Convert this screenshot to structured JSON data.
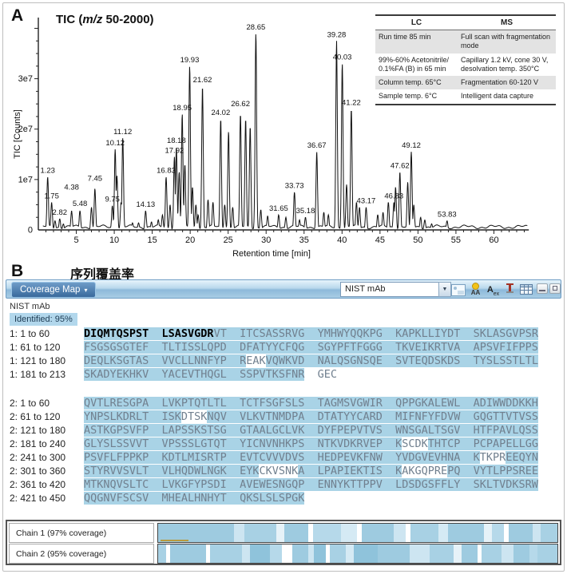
{
  "panel_a": {
    "label": "A",
    "title_parts": {
      "prefix": "TIC (",
      "italic": "m/z",
      "suffix": " 50-2000)"
    },
    "table": {
      "headers": [
        "LC",
        "MS"
      ],
      "rows": [
        [
          "Run time 85 min",
          "Full scan with fragmentation mode"
        ],
        [
          "99%-60% Acetonitrile/ 0.1%FA (B) in 65 min",
          "Capillary 1.2 kV, cone 30 V, desolvation temp. 350°C"
        ],
        [
          "Column temp. 65°C",
          "Fragmentation 60-120 V"
        ],
        [
          "Sample temp. 6°C",
          "Intelligent data capture"
        ]
      ]
    }
  },
  "chart_data": {
    "type": "line",
    "title": "TIC (m/z 50-2000)",
    "xlabel": "Retention time [min]",
    "ylabel": "TIC [Counts]",
    "xlim": [
      0,
      65
    ],
    "ylim_e7": [
      0,
      4.15
    ],
    "intensity_unit": "1e7 counts",
    "xticks": [
      5,
      10,
      15,
      20,
      25,
      30,
      35,
      40,
      45,
      50,
      55,
      60
    ],
    "yticks": [
      {
        "v": 0,
        "label": "0"
      },
      {
        "v": 1,
        "label": "1e7"
      },
      {
        "v": 2,
        "label": "2e7"
      },
      {
        "v": 3,
        "label": "3e7"
      }
    ],
    "peaks": [
      {
        "rt": 1.23,
        "i": 1.05,
        "label": "1.23"
      },
      {
        "rt": 1.75,
        "i": 0.55,
        "label": "1.75"
      },
      {
        "rt": 2.82,
        "i": 0.22,
        "label": "2.82"
      },
      {
        "rt": 4.38,
        "i": 0.38,
        "label": "4.38"
      },
      {
        "rt": 5.48,
        "i": 0.38,
        "label": "5.48"
      },
      {
        "rt": 7.45,
        "i": 0.82,
        "label": "7.45"
      },
      {
        "rt": 9.75,
        "i": 0.48,
        "label": "9.75"
      },
      {
        "rt": 10.12,
        "i": 1.6,
        "label": "10.12"
      },
      {
        "rt": 11.12,
        "i": 1.82,
        "label": "11.12"
      },
      {
        "rt": 14.13,
        "i": 0.38,
        "label": "14.13"
      },
      {
        "rt": 16.83,
        "i": 1.05,
        "label": "16.83"
      },
      {
        "rt": 17.92,
        "i": 1.45,
        "label": "17.92"
      },
      {
        "rt": 18.18,
        "i": 1.65,
        "label": "18.18"
      },
      {
        "rt": 18.95,
        "i": 2.3,
        "label": "18.95"
      },
      {
        "rt": 19.93,
        "i": 3.25,
        "label": "19.93"
      },
      {
        "rt": 21.62,
        "i": 2.85,
        "label": "21.62"
      },
      {
        "rt": 24.02,
        "i": 2.2,
        "label": "24.02"
      },
      {
        "rt": 26.62,
        "i": 2.3,
        "label": "26.62"
      },
      {
        "rt": 28.65,
        "i": 3.9,
        "label": "28.65"
      },
      {
        "rt": 31.65,
        "i": 0.3,
        "label": "31.65"
      },
      {
        "rt": 33.73,
        "i": 0.75,
        "label": "33.73"
      },
      {
        "rt": 35.18,
        "i": 0.25,
        "label": "35.18"
      },
      {
        "rt": 36.67,
        "i": 1.55,
        "label": "36.67"
      },
      {
        "rt": 39.28,
        "i": 3.75,
        "label": "39.28"
      },
      {
        "rt": 40.03,
        "i": 3.3,
        "label": "40.03"
      },
      {
        "rt": 41.22,
        "i": 2.4,
        "label": "41.22"
      },
      {
        "rt": 43.17,
        "i": 0.45,
        "label": "43.17"
      },
      {
        "rt": 46.83,
        "i": 0.55,
        "label": "46.83"
      },
      {
        "rt": 47.62,
        "i": 1.15,
        "label": "47.62"
      },
      {
        "rt": 49.12,
        "i": 1.55,
        "label": "49.12"
      },
      {
        "rt": 53.83,
        "i": 0.18,
        "label": "53.83"
      }
    ],
    "minor_peaks": [
      [
        2.2,
        0.18
      ],
      [
        3.3,
        0.12
      ],
      [
        7.0,
        0.45
      ],
      [
        10.35,
        1.08
      ],
      [
        10.9,
        0.55
      ],
      [
        12.4,
        0.14
      ],
      [
        13.2,
        0.14
      ],
      [
        14.9,
        0.16
      ],
      [
        15.8,
        0.2
      ],
      [
        16.35,
        0.3
      ],
      [
        17.35,
        0.5
      ],
      [
        18.55,
        1.15
      ],
      [
        19.3,
        1.3
      ],
      [
        20.3,
        0.85
      ],
      [
        20.75,
        0.5
      ],
      [
        21.05,
        0.3
      ],
      [
        22.35,
        0.6
      ],
      [
        23.0,
        0.55
      ],
      [
        24.55,
        0.5
      ],
      [
        25.05,
        1.95
      ],
      [
        25.6,
        0.45
      ],
      [
        27.3,
        2.2
      ],
      [
        27.9,
        2.05
      ],
      [
        29.3,
        0.4
      ],
      [
        30.2,
        0.28
      ],
      [
        32.6,
        0.25
      ],
      [
        34.4,
        0.2
      ],
      [
        37.6,
        0.35
      ],
      [
        38.2,
        0.3
      ],
      [
        40.6,
        0.9
      ],
      [
        41.9,
        0.55
      ],
      [
        42.3,
        0.45
      ],
      [
        44.7,
        0.3
      ],
      [
        45.4,
        0.35
      ],
      [
        46.1,
        0.55
      ],
      [
        47.05,
        0.85
      ],
      [
        48.65,
        0.95
      ],
      [
        49.45,
        0.5
      ],
      [
        50.35,
        0.25
      ],
      [
        50.9,
        0.2
      ],
      [
        51.8,
        0.12
      ]
    ]
  },
  "panel_b": {
    "label": "B",
    "title": "序列覆盖率",
    "toolbar": {
      "menu_label": "Coverage Map",
      "menu_arrow": "▾",
      "dropdown_value": "NIST mAb",
      "dropdown_arrow": "▼",
      "icons": [
        "image-export-icon",
        "highlight-aa-icon",
        "annotate-text-icon",
        "intensity-marker-icon",
        "table-view-icon"
      ],
      "icon_glyphs": {
        "aa": "AA",
        "annotate_main": "A",
        "annotate_sub": "ex"
      }
    },
    "protein_name": "NIST mAb",
    "identified_label": "Identified: 95%",
    "highlight_color": "#a9d3e6",
    "chains": [
      {
        "rows": [
          {
            "label": "1: 1 to 60",
            "seq": "DIQMTQSPSTLSASVGDRVTITCSASSRVGYMHWYQQKPGKAPKLLIYDTSKLASGVPSR",
            "bold": [
              [
                1,
                18
              ]
            ],
            "plain": []
          },
          {
            "label": "1: 61 to 120",
            "seq": "FSGSGSGTEFTLTISSLQPDDFATYYCFQGSGYPFTFGGGTKVEIKRTVAAPSVFIFPPS",
            "bold": [],
            "plain": []
          },
          {
            "label": "1: 121 to 180",
            "seq": "DEQLKSGTASVVCLLNNFYPREAKVQWKVDNALQSGNSQESVTEQDSKDSTYSLSSTLTL",
            "bold": [],
            "plain": [
              [
                22,
                24
              ]
            ]
          },
          {
            "label": "1: 181 to 213",
            "seq": "SKADYEKHKVYACEVTHQGLSSPVTKSFNRGEC",
            "bold": [],
            "plain": [
              [
                31,
                33
              ]
            ]
          }
        ]
      },
      {
        "rows": [
          {
            "label": "2: 1 to 60",
            "seq": "QVTLRESGPALVKPTQTLTLTCTFSGFSLSTAGMSVGWIRQPPGKALEWLADIWWDDKKH",
            "bold": [],
            "plain": []
          },
          {
            "label": "2: 61 to 120",
            "seq": "YNPSLKDRLTISKDTSKNQVVLKVTNMDPADTATYYCARDMIFNFYFDVWGQGTTVTVSS",
            "bold": [],
            "plain": [
              [
                14,
                17
              ]
            ]
          },
          {
            "label": "2: 121 to 180",
            "seq": "ASTKGPSVFPLAPSSKSTSGGTAALGCLVKDYFPEPVTVSWNSGALTSGVHTFPAVLQSS",
            "bold": [],
            "plain": []
          },
          {
            "label": "2: 181 to 240",
            "seq": "GLYSLSSVVTVPSSSLGTQTYICNVNHKPSNTKVDKRVEPKSCDKTHTCPPCPAPELLGG",
            "bold": [],
            "plain": [
              [
                42,
                45
              ]
            ]
          },
          {
            "label": "2: 241 to 300",
            "seq": "PSVFLFPPKPKDTLMISRTPEVTCVVVDVSHEDPEVKFNWYVDGVEVHNAKTKPREEQYN",
            "bold": [],
            "plain": [
              [
                52,
                55
              ]
            ]
          },
          {
            "label": "2: 301 to 360",
            "seq": "STYRVVSVLTVLHQDWLNGKEYKCKVSNKALPAPIEKTISKAKGQPREPQVYTLPPSREE",
            "bold": [],
            "plain": [
              [
                24,
                29
              ],
              [
                42,
                48
              ]
            ]
          },
          {
            "label": "2: 361 to 420",
            "seq": "MTKNQVSLTCLVKGFYPSDIAVEWESNGQPENNYKTTPPVLDSDGSFFLYSKLTVDKSRW",
            "bold": [],
            "plain": []
          },
          {
            "label": "2: 421 to 450",
            "seq": "QQGNVFSCSVMHEALHNHYTQKSLSLSPGK",
            "bold": [],
            "plain": []
          }
        ]
      }
    ],
    "coverage": {
      "rows": [
        {
          "label": "Chain 1 (97% coverage)",
          "marker": {
            "left_pct": 0.5,
            "width_pct": 7,
            "color": "#b89b3e"
          },
          "segments": [
            {
              "w": 19,
              "c": "#9ecbe0"
            },
            {
              "w": 2.5,
              "c": "#cde5f1"
            },
            {
              "w": 8,
              "c": "#a8d1e4"
            },
            {
              "w": 2,
              "c": "#e6f2f8"
            },
            {
              "w": 6,
              "c": "#9ecbe0"
            },
            {
              "w": 1.2,
              "c": "#ffffff"
            },
            {
              "w": 7,
              "c": "#b6d9ea"
            },
            {
              "w": 4,
              "c": "#d5eaf4"
            },
            {
              "w": 1.2,
              "c": "#ffffff"
            },
            {
              "w": 8,
              "c": "#9ecbe0"
            },
            {
              "w": 3,
              "c": "#cde5f1"
            },
            {
              "w": 1.2,
              "c": "#ffffff"
            },
            {
              "w": 7,
              "c": "#a8d1e4"
            },
            {
              "w": 2.5,
              "c": "#d5eaf4"
            },
            {
              "w": 9,
              "c": "#9ecbe0"
            },
            {
              "w": 2,
              "c": "#e6f2f8"
            },
            {
              "w": 3,
              "c": "#b6d9ea"
            },
            {
              "w": 1.2,
              "c": "#ffffff"
            },
            {
              "w": 6,
              "c": "#9ecbe0"
            },
            {
              "w": 2,
              "c": "#cde5f1"
            },
            {
              "w": 4.2,
              "c": "#a8d1e4"
            }
          ]
        },
        {
          "label": "Chain 2 (95% coverage)",
          "marker": null,
          "segments": [
            {
              "w": 2,
              "c": "#a8d1e4"
            },
            {
              "w": 1,
              "c": "#ffffff"
            },
            {
              "w": 9,
              "c": "#9ecbe0"
            },
            {
              "w": 1,
              "c": "#ffffff"
            },
            {
              "w": 8,
              "c": "#a8d1e4"
            },
            {
              "w": 2,
              "c": "#cde5f1"
            },
            {
              "w": 5,
              "c": "#8fc3db"
            },
            {
              "w": 3,
              "c": "#b6d9ea"
            },
            {
              "w": 2.5,
              "c": "#ffffff"
            },
            {
              "w": 4,
              "c": "#9ecbe0"
            },
            {
              "w": 1.5,
              "c": "#cde5f1"
            },
            {
              "w": 3,
              "c": "#8fc3db"
            },
            {
              "w": 1,
              "c": "#ffffff"
            },
            {
              "w": 4,
              "c": "#a8d1e4"
            },
            {
              "w": 2,
              "c": "#d5eaf4"
            },
            {
              "w": 6,
              "c": "#8fc3db"
            },
            {
              "w": 8,
              "c": "#9ecbe0"
            },
            {
              "w": 5,
              "c": "#cde5f1"
            },
            {
              "w": 6,
              "c": "#a8d1e4"
            },
            {
              "w": 2,
              "c": "#e6f2f8"
            },
            {
              "w": 4,
              "c": "#9ecbe0"
            },
            {
              "w": 1,
              "c": "#ffffff"
            },
            {
              "w": 5,
              "c": "#a8d1e4"
            },
            {
              "w": 3,
              "c": "#cde5f1"
            },
            {
              "w": 4,
              "c": "#9ecbe0"
            },
            {
              "w": 2,
              "c": "#b6d9ea"
            },
            {
              "w": 5,
              "c": "#a8d1e4"
            }
          ]
        }
      ]
    }
  }
}
